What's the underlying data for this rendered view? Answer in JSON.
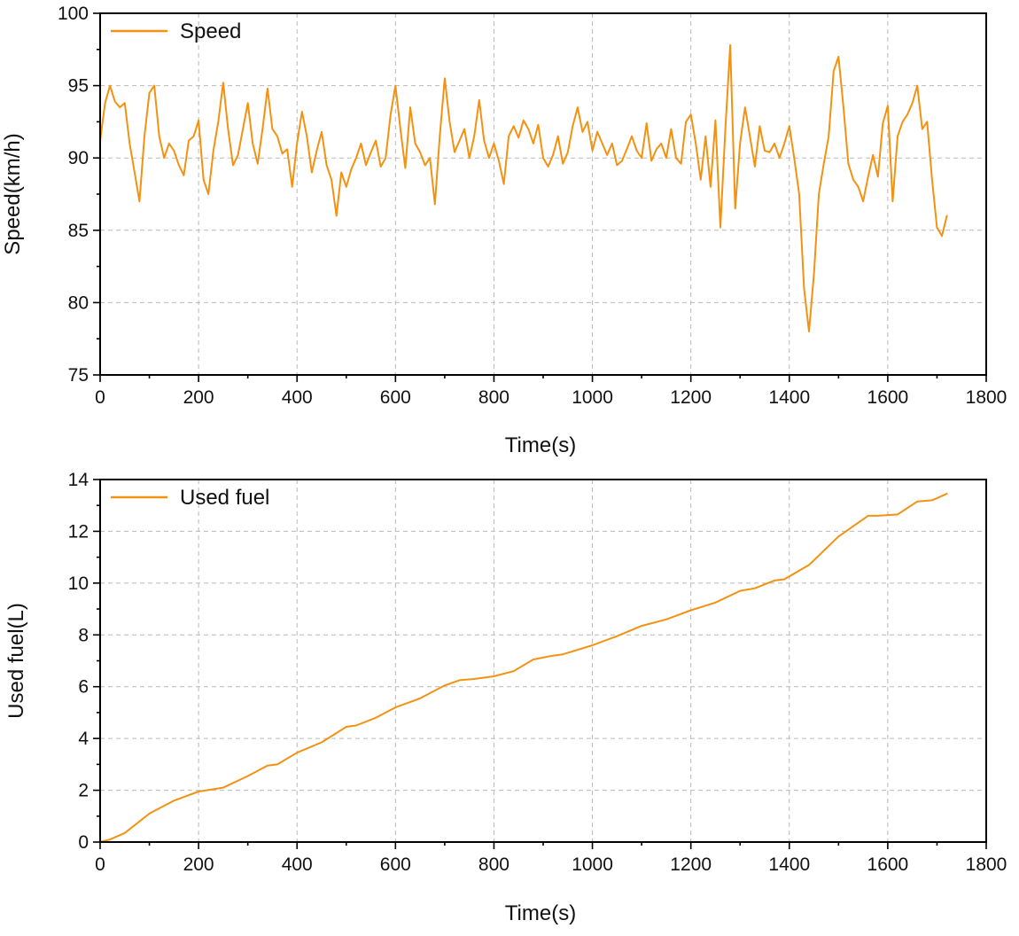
{
  "figure": {
    "accent_color": "#f39212"
  },
  "chart_data": [
    {
      "type": "line",
      "title": "",
      "xlabel": "Time(s)",
      "ylabel": "Speed(km/h)",
      "xlim": [
        0,
        1800
      ],
      "ylim": [
        75,
        100
      ],
      "xticks": [
        0,
        200,
        400,
        600,
        800,
        1000,
        1200,
        1400,
        1600,
        1800
      ],
      "yticks": [
        75,
        80,
        85,
        90,
        95,
        100
      ],
      "grid": true,
      "legend_position": "top-left",
      "series": [
        {
          "name": "Speed",
          "color": "#f39212",
          "x": [
            0,
            10,
            20,
            30,
            40,
            50,
            60,
            70,
            80,
            90,
            100,
            110,
            120,
            130,
            140,
            150,
            160,
            170,
            180,
            190,
            200,
            210,
            220,
            230,
            240,
            250,
            260,
            270,
            280,
            290,
            300,
            310,
            320,
            330,
            340,
            350,
            360,
            370,
            380,
            390,
            400,
            410,
            420,
            430,
            440,
            450,
            460,
            470,
            480,
            490,
            500,
            510,
            520,
            530,
            540,
            550,
            560,
            570,
            580,
            590,
            600,
            610,
            620,
            630,
            640,
            650,
            660,
            670,
            680,
            690,
            700,
            710,
            720,
            730,
            740,
            750,
            760,
            770,
            780,
            790,
            800,
            810,
            820,
            830,
            840,
            850,
            860,
            870,
            880,
            890,
            900,
            910,
            920,
            930,
            940,
            950,
            960,
            970,
            980,
            990,
            1000,
            1010,
            1020,
            1030,
            1040,
            1050,
            1060,
            1070,
            1080,
            1090,
            1100,
            1110,
            1120,
            1130,
            1140,
            1150,
            1160,
            1170,
            1180,
            1190,
            1200,
            1210,
            1220,
            1230,
            1240,
            1250,
            1260,
            1270,
            1280,
            1290,
            1300,
            1310,
            1320,
            1330,
            1340,
            1350,
            1360,
            1370,
            1380,
            1390,
            1400,
            1410,
            1420,
            1430,
            1440,
            1450,
            1460,
            1470,
            1480,
            1490,
            1500,
            1510,
            1520,
            1530,
            1540,
            1550,
            1560,
            1570,
            1580,
            1590,
            1600,
            1610,
            1620,
            1630,
            1640,
            1650,
            1660,
            1670,
            1680,
            1690,
            1700,
            1710,
            1720
          ],
          "y": [
            91.2,
            93.8,
            95.0,
            93.9,
            93.5,
            93.8,
            91.0,
            89.0,
            87.0,
            91.5,
            94.5,
            95.0,
            91.5,
            90.0,
            91.0,
            90.5,
            89.5,
            88.8,
            91.2,
            91.5,
            92.6,
            88.5,
            87.5,
            90.5,
            92.5,
            95.2,
            92.0,
            89.5,
            90.2,
            92.0,
            93.8,
            91.0,
            89.6,
            92.0,
            94.8,
            92.0,
            91.5,
            90.3,
            90.6,
            88.0,
            91.0,
            93.2,
            91.5,
            89.0,
            90.5,
            91.8,
            89.5,
            88.5,
            86.0,
            89.0,
            88.0,
            89.2,
            90.0,
            91.0,
            89.5,
            90.4,
            91.2,
            89.4,
            90.0,
            93.0,
            95.0,
            92.0,
            89.3,
            93.5,
            91.0,
            90.4,
            89.5,
            90.0,
            86.8,
            91.5,
            95.5,
            92.5,
            90.4,
            91.2,
            92.0,
            90.0,
            91.5,
            94.0,
            91.2,
            90.0,
            91.0,
            89.8,
            88.2,
            91.5,
            92.2,
            91.4,
            92.6,
            92.0,
            91.0,
            92.3,
            90.0,
            89.4,
            90.2,
            91.5,
            89.6,
            90.4,
            92.2,
            93.5,
            91.8,
            92.5,
            90.5,
            91.8,
            91.0,
            90.2,
            91.0,
            89.5,
            89.8,
            90.6,
            91.5,
            90.5,
            90.0,
            92.4,
            89.8,
            90.6,
            91.0,
            90.0,
            92.0,
            90.0,
            89.6,
            92.5,
            93.0,
            91.0,
            88.5,
            91.5,
            88.0,
            92.6,
            85.2,
            92.0,
            97.8,
            86.5,
            91.0,
            93.5,
            91.5,
            89.4,
            92.2,
            90.5,
            90.4,
            91.0,
            90.0,
            91.0,
            92.2,
            90.0,
            87.5,
            81.0,
            78.0,
            82.0,
            87.5,
            89.6,
            91.5,
            96.0,
            97.0,
            93.5,
            89.6,
            88.5,
            88.0,
            87.0,
            88.7,
            90.2,
            88.7,
            92.4,
            93.6,
            87.0,
            91.5,
            92.5,
            93.0,
            93.8,
            95.0,
            92.0,
            92.5,
            88.5,
            85.2,
            84.6,
            86.0
          ]
        }
      ]
    },
    {
      "type": "line",
      "title": "",
      "xlabel": "Time(s)",
      "ylabel": "Used fuel(L)",
      "xlim": [
        0,
        1800
      ],
      "ylim": [
        0,
        14
      ],
      "xticks": [
        0,
        200,
        400,
        600,
        800,
        1000,
        1200,
        1400,
        1600,
        1800
      ],
      "yticks": [
        0,
        2,
        4,
        6,
        8,
        10,
        12,
        14
      ],
      "grid": true,
      "legend_position": "top-left",
      "series": [
        {
          "name": "Used fuel",
          "color": "#f39212",
          "x": [
            0,
            20,
            50,
            100,
            150,
            200,
            250,
            300,
            340,
            360,
            400,
            450,
            500,
            520,
            560,
            600,
            650,
            700,
            730,
            760,
            800,
            840,
            880,
            920,
            940,
            1000,
            1050,
            1100,
            1150,
            1200,
            1250,
            1300,
            1330,
            1370,
            1390,
            1440,
            1500,
            1560,
            1580,
            1620,
            1660,
            1690,
            1720
          ],
          "y": [
            0.0,
            0.1,
            0.35,
            1.1,
            1.6,
            1.95,
            2.1,
            2.55,
            2.95,
            3.0,
            3.45,
            3.85,
            4.45,
            4.5,
            4.8,
            5.2,
            5.55,
            6.05,
            6.25,
            6.3,
            6.4,
            6.6,
            7.05,
            7.2,
            7.25,
            7.6,
            7.95,
            8.35,
            8.6,
            8.95,
            9.25,
            9.7,
            9.8,
            10.1,
            10.15,
            10.7,
            11.8,
            12.6,
            12.6,
            12.65,
            13.15,
            13.2,
            13.45
          ]
        }
      ]
    }
  ]
}
